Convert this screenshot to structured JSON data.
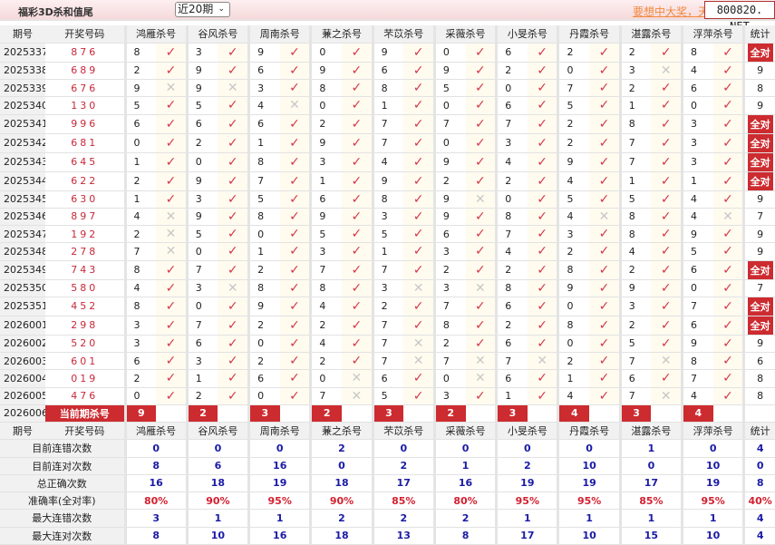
{
  "header": {
    "title": "福彩3D杀和值尾",
    "range_select": "近20期",
    "promo_link": "要想中大奖，天",
    "watermark": "800820. NET"
  },
  "columns": {
    "period": "期号",
    "draw": "开奖号码",
    "experts": [
      "鸿雁杀号",
      "谷风杀号",
      "周南杀号",
      "蒹之杀号",
      "芣苡杀号",
      "采薇杀号",
      "小旻杀号",
      "丹霞杀号",
      "湛露杀号",
      "浮萍杀号"
    ],
    "stat": "统计"
  },
  "colors": {
    "accent": "#cc2b30",
    "hit": "#d4384a",
    "miss": "#c8c8c8",
    "stat_value": "#1a1aa6"
  },
  "icons": {
    "hit": "check-icon",
    "miss": "cross-icon"
  },
  "rows": [
    {
      "period": "2025337",
      "draw": "876",
      "kills": [
        8,
        3,
        9,
        0,
        9,
        0,
        6,
        2,
        2,
        8
      ],
      "hits": [
        1,
        1,
        1,
        1,
        1,
        1,
        1,
        1,
        1,
        1
      ],
      "stat": "全对"
    },
    {
      "period": "2025338",
      "draw": "689",
      "kills": [
        2,
        9,
        6,
        9,
        6,
        9,
        2,
        0,
        3,
        4
      ],
      "hits": [
        1,
        1,
        1,
        1,
        1,
        1,
        1,
        1,
        0,
        1
      ],
      "stat": "9"
    },
    {
      "period": "2025339",
      "draw": "676",
      "kills": [
        9,
        9,
        3,
        8,
        8,
        5,
        0,
        7,
        2,
        6
      ],
      "hits": [
        0,
        0,
        1,
        1,
        1,
        1,
        1,
        1,
        1,
        1
      ],
      "stat": "8"
    },
    {
      "period": "2025340",
      "draw": "130",
      "kills": [
        5,
        5,
        4,
        0,
        1,
        0,
        6,
        5,
        1,
        0
      ],
      "hits": [
        1,
        1,
        0,
        1,
        1,
        1,
        1,
        1,
        1,
        1
      ],
      "stat": "9"
    },
    {
      "period": "2025341",
      "draw": "996",
      "kills": [
        6,
        6,
        6,
        2,
        7,
        7,
        7,
        2,
        8,
        3
      ],
      "hits": [
        1,
        1,
        1,
        1,
        1,
        1,
        1,
        1,
        1,
        1
      ],
      "stat": "全对"
    },
    {
      "period": "2025342",
      "draw": "681",
      "kills": [
        0,
        2,
        1,
        9,
        7,
        0,
        3,
        2,
        7,
        3
      ],
      "hits": [
        1,
        1,
        1,
        1,
        1,
        1,
        1,
        1,
        1,
        1
      ],
      "stat": "全对"
    },
    {
      "period": "2025343",
      "draw": "645",
      "kills": [
        1,
        0,
        8,
        3,
        4,
        9,
        4,
        9,
        7,
        3
      ],
      "hits": [
        1,
        1,
        1,
        1,
        1,
        1,
        1,
        1,
        1,
        1
      ],
      "stat": "全对"
    },
    {
      "period": "2025344",
      "draw": "622",
      "kills": [
        2,
        9,
        7,
        1,
        9,
        2,
        2,
        4,
        1,
        1
      ],
      "hits": [
        1,
        1,
        1,
        1,
        1,
        1,
        1,
        1,
        1,
        1
      ],
      "stat": "全对"
    },
    {
      "period": "2025345",
      "draw": "630",
      "kills": [
        1,
        3,
        5,
        6,
        8,
        9,
        0,
        5,
        5,
        4
      ],
      "hits": [
        1,
        1,
        1,
        1,
        1,
        0,
        1,
        1,
        1,
        1
      ],
      "stat": "9"
    },
    {
      "period": "2025346",
      "draw": "897",
      "kills": [
        4,
        9,
        8,
        9,
        3,
        9,
        8,
        4,
        8,
        4
      ],
      "hits": [
        0,
        1,
        1,
        1,
        1,
        1,
        1,
        0,
        1,
        0
      ],
      "stat": "7"
    },
    {
      "period": "2025347",
      "draw": "192",
      "kills": [
        2,
        5,
        0,
        5,
        5,
        6,
        7,
        3,
        8,
        9
      ],
      "hits": [
        0,
        1,
        1,
        1,
        1,
        1,
        1,
        1,
        1,
        1
      ],
      "stat": "9"
    },
    {
      "period": "2025348",
      "draw": "278",
      "kills": [
        7,
        0,
        1,
        3,
        1,
        3,
        4,
        2,
        4,
        5
      ],
      "hits": [
        0,
        1,
        1,
        1,
        1,
        1,
        1,
        1,
        1,
        1
      ],
      "stat": "9"
    },
    {
      "period": "2025349",
      "draw": "743",
      "kills": [
        8,
        7,
        2,
        7,
        7,
        2,
        2,
        8,
        2,
        6
      ],
      "hits": [
        1,
        1,
        1,
        1,
        1,
        1,
        1,
        1,
        1,
        1
      ],
      "stat": "全对"
    },
    {
      "period": "2025350",
      "draw": "580",
      "kills": [
        4,
        3,
        8,
        8,
        3,
        3,
        8,
        9,
        9,
        0
      ],
      "hits": [
        1,
        0,
        1,
        1,
        0,
        0,
        1,
        1,
        1,
        1
      ],
      "stat": "7"
    },
    {
      "period": "2025351",
      "draw": "452",
      "kills": [
        8,
        0,
        9,
        4,
        2,
        7,
        6,
        0,
        3,
        7
      ],
      "hits": [
        1,
        1,
        1,
        1,
        1,
        1,
        1,
        1,
        1,
        1
      ],
      "stat": "全对"
    },
    {
      "period": "2026001",
      "draw": "298",
      "kills": [
        3,
        7,
        2,
        2,
        7,
        8,
        2,
        8,
        2,
        6
      ],
      "hits": [
        1,
        1,
        1,
        1,
        1,
        1,
        1,
        1,
        1,
        1
      ],
      "stat": "全对"
    },
    {
      "period": "2026002",
      "draw": "520",
      "kills": [
        3,
        6,
        0,
        4,
        7,
        2,
        6,
        0,
        5,
        9
      ],
      "hits": [
        1,
        1,
        1,
        1,
        0,
        1,
        1,
        1,
        1,
        1
      ],
      "stat": "9"
    },
    {
      "period": "2026003",
      "draw": "601",
      "kills": [
        6,
        3,
        2,
        2,
        7,
        7,
        7,
        2,
        7,
        8
      ],
      "hits": [
        1,
        1,
        1,
        1,
        0,
        0,
        0,
        1,
        0,
        1
      ],
      "stat": "6"
    },
    {
      "period": "2026004",
      "draw": "019",
      "kills": [
        2,
        1,
        6,
        0,
        6,
        0,
        6,
        1,
        6,
        7
      ],
      "hits": [
        1,
        1,
        1,
        0,
        1,
        0,
        1,
        1,
        1,
        1
      ],
      "stat": "8"
    },
    {
      "period": "2026005",
      "draw": "476",
      "kills": [
        0,
        2,
        0,
        7,
        5,
        3,
        1,
        4,
        7,
        4
      ],
      "hits": [
        1,
        1,
        1,
        0,
        1,
        1,
        1,
        1,
        0,
        1
      ],
      "stat": "8"
    }
  ],
  "current": {
    "period": "2026006",
    "label": "当前期杀号",
    "kills": [
      9,
      2,
      3,
      2,
      3,
      2,
      3,
      4,
      3,
      4
    ]
  },
  "stats": [
    {
      "label": "目前连错次数",
      "values": [
        "0",
        "0",
        "0",
        "2",
        "0",
        "0",
        "0",
        "0",
        "1",
        "0",
        "4"
      ]
    },
    {
      "label": "目前连对次数",
      "values": [
        "8",
        "6",
        "16",
        "0",
        "2",
        "1",
        "2",
        "10",
        "0",
        "10",
        "0"
      ]
    },
    {
      "label": "总正确次数",
      "values": [
        "16",
        "18",
        "19",
        "18",
        "17",
        "16",
        "19",
        "19",
        "17",
        "19",
        "8"
      ]
    },
    {
      "label": "准确率(全对率)",
      "values": [
        "80%",
        "90%",
        "95%",
        "90%",
        "85%",
        "80%",
        "95%",
        "95%",
        "85%",
        "95%",
        "40%"
      ],
      "percent": true
    },
    {
      "label": "最大连错次数",
      "values": [
        "3",
        "1",
        "1",
        "2",
        "2",
        "2",
        "1",
        "1",
        "1",
        "1",
        "4"
      ]
    },
    {
      "label": "最大连对次数",
      "values": [
        "8",
        "10",
        "16",
        "18",
        "13",
        "8",
        "17",
        "10",
        "15",
        "10",
        "4"
      ]
    }
  ]
}
